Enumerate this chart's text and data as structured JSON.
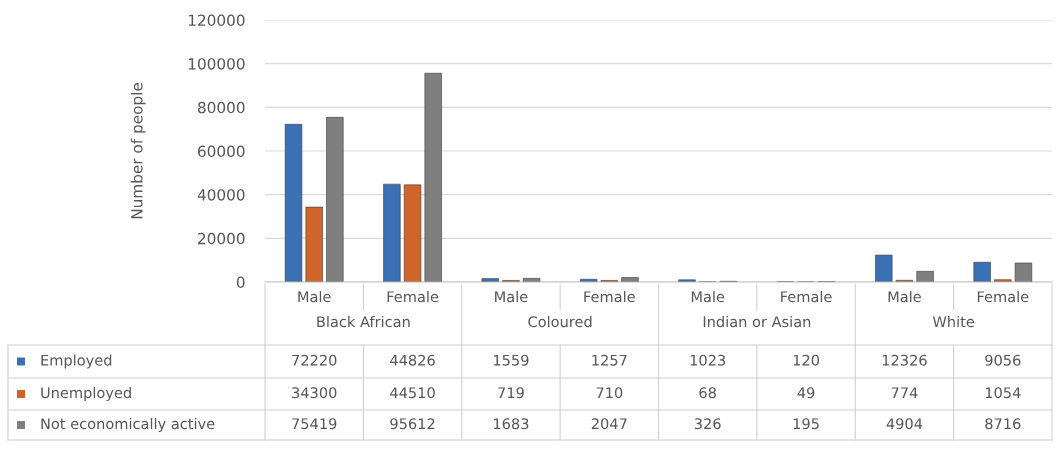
{
  "chart_data": {
    "type": "bar",
    "ylabel": "Number of people",
    "categories": [
      "Male",
      "Female",
      "Male",
      "Female",
      "Male",
      "Female",
      "Male",
      "Female"
    ],
    "annotations": [
      "Black African",
      "Coloured",
      "Indian or Asian",
      "White"
    ],
    "series": [
      {
        "name": "Employed",
        "color": "#3b70b5",
        "values": [
          72220,
          44826,
          1559,
          1257,
          1023,
          120,
          12326,
          9056
        ]
      },
      {
        "name": "Unemployed",
        "color": "#d0642a",
        "values": [
          34300,
          44510,
          719,
          710,
          68,
          49,
          774,
          1054
        ]
      },
      {
        "name": "Not economically active",
        "color": "#7f7f7f",
        "values": [
          75419,
          95612,
          1683,
          2047,
          326,
          195,
          4904,
          8716
        ]
      }
    ],
    "ylim": [
      0,
      120000
    ],
    "yticks": [
      0,
      20000,
      40000,
      60000,
      80000,
      100000,
      120000
    ],
    "grid": "y",
    "legend": "bottom left",
    "data_labels": true
  }
}
